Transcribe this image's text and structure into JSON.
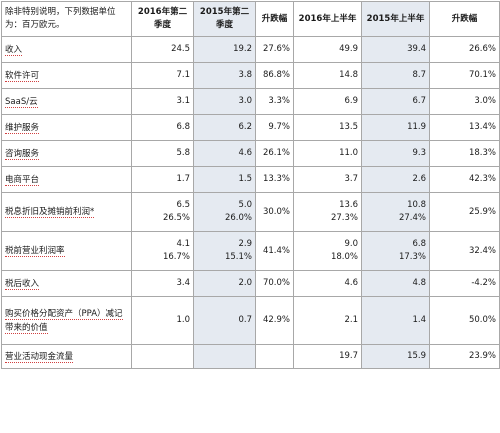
{
  "header": {
    "label": "除非特别说明，下列数据单位为：百万欧元。",
    "cols": [
      "2016年第二季度",
      "2015年第二季度",
      "升跌幅",
      "2016年上半年",
      "2015年上半年",
      "升跌幅"
    ]
  },
  "rows": [
    {
      "label": "收入",
      "cells": [
        [
          "24.5"
        ],
        [
          "19.2"
        ],
        [
          "27.6%"
        ],
        [
          "49.9"
        ],
        [
          "39.4"
        ],
        [
          "26.6%"
        ]
      ]
    },
    {
      "label": "软件许可",
      "cells": [
        [
          "7.1"
        ],
        [
          "3.8"
        ],
        [
          "86.8%"
        ],
        [
          "14.8"
        ],
        [
          "8.7"
        ],
        [
          "70.1%"
        ]
      ]
    },
    {
      "label": "SaaS/云",
      "cells": [
        [
          "3.1"
        ],
        [
          "3.0"
        ],
        [
          "3.3%"
        ],
        [
          "6.9"
        ],
        [
          "6.7"
        ],
        [
          "3.0%"
        ]
      ]
    },
    {
      "label": "维护服务",
      "cells": [
        [
          "6.8"
        ],
        [
          "6.2"
        ],
        [
          "9.7%"
        ],
        [
          "13.5"
        ],
        [
          "11.9"
        ],
        [
          "13.4%"
        ]
      ]
    },
    {
      "label": "咨询服务",
      "cells": [
        [
          "5.8"
        ],
        [
          "4.6"
        ],
        [
          "26.1%"
        ],
        [
          "11.0"
        ],
        [
          "9.3"
        ],
        [
          "18.3%"
        ]
      ]
    },
    {
      "label": "电商平台",
      "cells": [
        [
          "1.7"
        ],
        [
          "1.5"
        ],
        [
          "13.3%"
        ],
        [
          "3.7"
        ],
        [
          "2.6"
        ],
        [
          "42.3%"
        ]
      ]
    },
    {
      "label": "税息折旧及摊销前利润*",
      "cells": [
        [
          "6.5",
          "26.5%"
        ],
        [
          "5.0",
          "26.0%"
        ],
        [
          "30.0%"
        ],
        [
          "13.6",
          "27.3%"
        ],
        [
          "10.8",
          "27.4%"
        ],
        [
          "25.9%"
        ]
      ]
    },
    {
      "label": "税前营业利润率",
      "cells": [
        [
          "4.1",
          "16.7%"
        ],
        [
          "2.9",
          "15.1%"
        ],
        [
          "41.4%"
        ],
        [
          "9.0",
          "18.0%"
        ],
        [
          "6.8",
          "17.3%"
        ],
        [
          "32.4%"
        ]
      ]
    },
    {
      "label": "税后收入",
      "cells": [
        [
          "3.4"
        ],
        [
          "2.0"
        ],
        [
          "70.0%"
        ],
        [
          "4.6"
        ],
        [
          "4.8"
        ],
        [
          "-4.2%"
        ]
      ]
    },
    {
      "label": "购买价格分配资产（PPA）减记带来的价值",
      "cells": [
        [
          "1.0"
        ],
        [
          "0.7"
        ],
        [
          "42.9%"
        ],
        [
          "2.1"
        ],
        [
          "1.4"
        ],
        [
          "50.0%"
        ]
      ]
    },
    {
      "label": "营业活动现金流量",
      "cells": [
        [
          ""
        ],
        [
          ""
        ],
        [
          ""
        ],
        [
          "19.7"
        ],
        [
          "15.9"
        ],
        [
          "23.9%"
        ]
      ]
    }
  ]
}
